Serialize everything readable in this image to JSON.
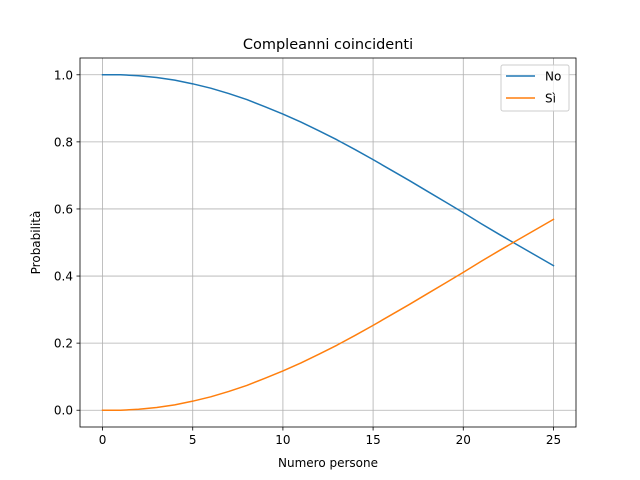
{
  "chart_data": {
    "type": "line",
    "title": "Compleanni coincidenti",
    "xlabel": "Numero persone",
    "ylabel": "Probabilità",
    "xlim": [
      -1.25,
      26.25
    ],
    "ylim": [
      -0.05,
      1.05
    ],
    "xticks": [
      0,
      5,
      10,
      15,
      20,
      25
    ],
    "xtick_labels": [
      "0",
      "5",
      "10",
      "15",
      "20",
      "25"
    ],
    "yticks": [
      0.0,
      0.2,
      0.4,
      0.6,
      0.8,
      1.0
    ],
    "ytick_labels": [
      "0.0",
      "0.2",
      "0.4",
      "0.6",
      "0.8",
      "1.0"
    ],
    "grid": true,
    "legend_position": "top-right",
    "x": [
      0,
      1,
      2,
      3,
      4,
      5,
      6,
      7,
      8,
      9,
      10,
      11,
      12,
      13,
      14,
      15,
      16,
      17,
      18,
      19,
      20,
      21,
      22,
      23,
      24,
      25
    ],
    "series": [
      {
        "name": "No",
        "color": "#1f77b4",
        "values": [
          1.0,
          1.0,
          0.997,
          0.992,
          0.984,
          0.973,
          0.96,
          0.944,
          0.926,
          0.905,
          0.883,
          0.859,
          0.833,
          0.806,
          0.777,
          0.747,
          0.716,
          0.685,
          0.653,
          0.621,
          0.589,
          0.556,
          0.524,
          0.493,
          0.462,
          0.431
        ]
      },
      {
        "name": "Sì",
        "color": "#ff7f0e",
        "values": [
          0.0,
          0.0,
          0.003,
          0.008,
          0.016,
          0.027,
          0.04,
          0.056,
          0.074,
          0.095,
          0.117,
          0.141,
          0.167,
          0.194,
          0.223,
          0.253,
          0.284,
          0.315,
          0.347,
          0.379,
          0.411,
          0.444,
          0.476,
          0.507,
          0.538,
          0.569
        ]
      }
    ]
  }
}
